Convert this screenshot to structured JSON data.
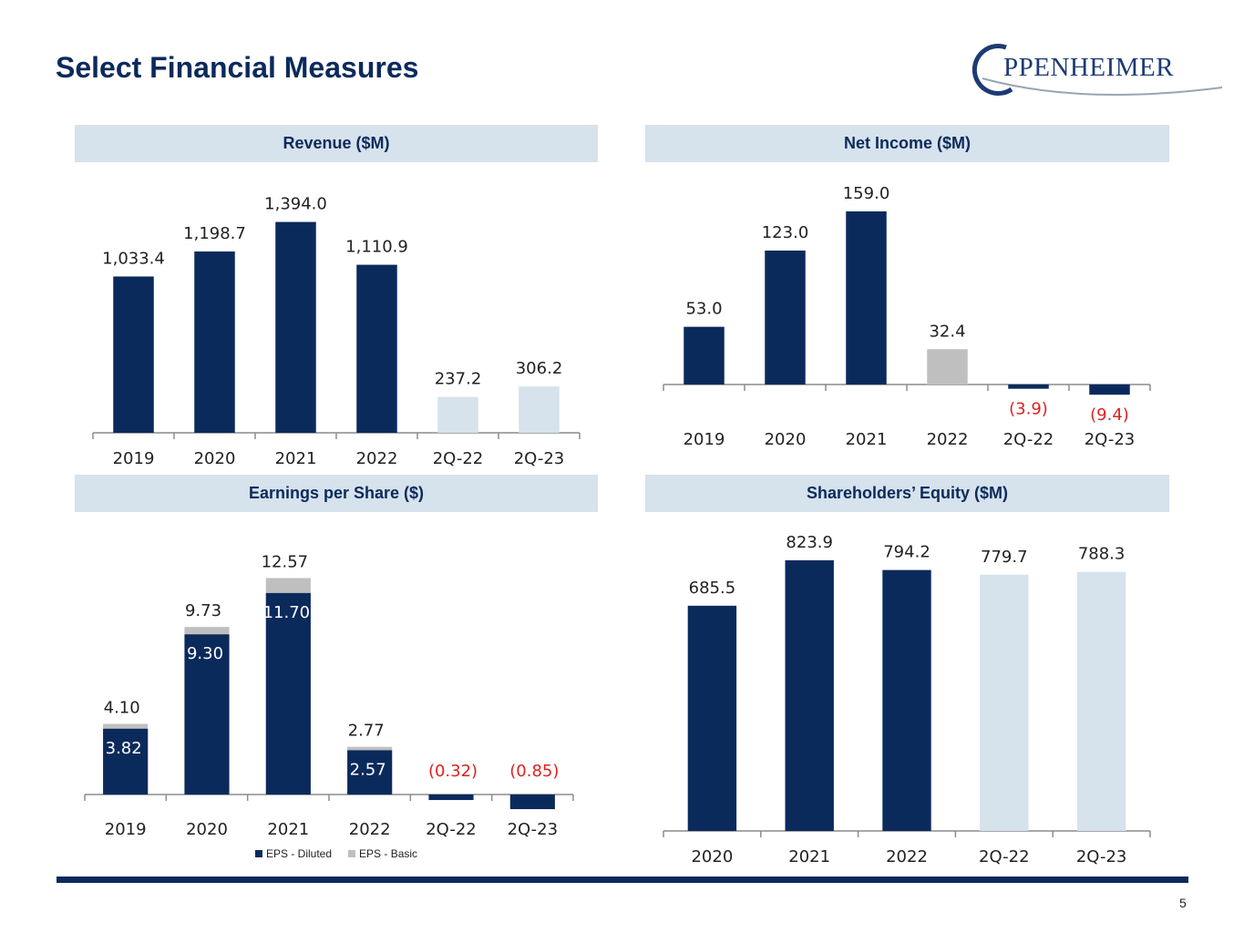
{
  "page": {
    "title": "Select Financial Measures",
    "page_number": "5"
  },
  "logo": {
    "text": "PPENHEIMER"
  },
  "colors": {
    "navy": "#0b2a5c",
    "light": "#d6e2ec",
    "gray": "#bfbfbf",
    "negative": "#e02020"
  },
  "legend": {
    "diluted": "EPS - Diluted",
    "basic": "EPS - Basic"
  },
  "chart_data": [
    {
      "id": "revenue",
      "type": "bar",
      "title": "Revenue ($M)",
      "categories": [
        "2019",
        "2020",
        "2021",
        "2022",
        "2Q-22",
        "2Q-23"
      ],
      "values": [
        1033.4,
        1198.7,
        1394.0,
        1110.9,
        237.2,
        306.2
      ],
      "labels": [
        "1,033.4",
        "1,198.7",
        "1,394.0",
        "1,110.9",
        "237.2",
        "306.2"
      ],
      "styles": [
        "navy",
        "navy",
        "navy",
        "navy",
        "light",
        "light"
      ]
    },
    {
      "id": "net_income",
      "type": "bar",
      "title": "Net Income ($M)",
      "categories": [
        "2019",
        "2020",
        "2021",
        "2022",
        "2Q-22",
        "2Q-23"
      ],
      "values": [
        53.0,
        123.0,
        159.0,
        32.4,
        -3.9,
        -9.4
      ],
      "labels": [
        "53.0",
        "123.0",
        "159.0",
        "32.4",
        "(3.9)",
        "(9.4)"
      ],
      "styles": [
        "navy",
        "navy",
        "navy",
        "gray",
        "navy",
        "navy"
      ]
    },
    {
      "id": "eps",
      "type": "bar",
      "title": "Earnings per Share ($)",
      "categories": [
        "2019",
        "2020",
        "2021",
        "2022",
        "2Q-22",
        "2Q-23"
      ],
      "series": [
        {
          "name": "EPS - Diluted",
          "values": [
            3.82,
            9.3,
            11.7,
            2.57,
            -0.32,
            -0.85
          ],
          "labels": [
            "3.82",
            "9.30",
            "11.70",
            "2.57",
            "(0.32)",
            "(0.85)"
          ]
        },
        {
          "name": "EPS - Basic",
          "values": [
            4.1,
            9.73,
            12.57,
            2.77,
            null,
            null
          ],
          "labels": [
            "4.10",
            "9.73",
            "12.57",
            "2.77",
            "",
            ""
          ]
        }
      ]
    },
    {
      "id": "equity",
      "type": "bar",
      "title": "Shareholders’ Equity ($M)",
      "categories": [
        "2020",
        "2021",
        "2022",
        "2Q-22",
        "2Q-23"
      ],
      "values": [
        685.5,
        823.9,
        794.2,
        779.7,
        788.3
      ],
      "labels": [
        "685.5",
        "823.9",
        "794.2",
        "779.7",
        "788.3"
      ],
      "styles": [
        "navy",
        "navy",
        "navy",
        "light",
        "light"
      ]
    }
  ]
}
